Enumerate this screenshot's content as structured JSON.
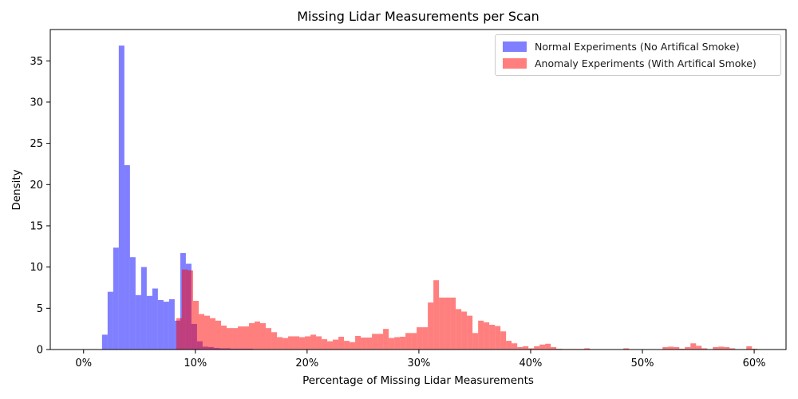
{
  "chart_data": {
    "type": "bar",
    "subtype": "overlapping-histogram",
    "title": "Missing Lidar Measurements per Scan",
    "xlabel": "Percentage of Missing Lidar Measurements",
    "ylabel": "Density",
    "x_tick_values": [
      0,
      10,
      20,
      30,
      40,
      50,
      60
    ],
    "x_tick_labels": [
      "0%",
      "10%",
      "20%",
      "30%",
      "40%",
      "50%",
      "60%"
    ],
    "y_tick_values": [
      0,
      5,
      10,
      15,
      20,
      25,
      30,
      35
    ],
    "y_tick_labels": [
      "0",
      "5",
      "10",
      "15",
      "20",
      "25",
      "30",
      "35"
    ],
    "xlim": [
      -2.98,
      62.85
    ],
    "ylim": [
      0,
      38.8
    ],
    "grid": false,
    "legend_position": "upper right",
    "bin_width_pct": 0.5,
    "series": [
      {
        "name": "Normal Experiments (No Artifical Smoke)",
        "color": "rgba(0,0,255,0.5)",
        "legend_color": "#7f7fff",
        "bin_start_pct": 1.65,
        "densities": [
          1.8,
          7.0,
          12.35,
          36.85,
          22.35,
          11.2,
          6.6,
          10.0,
          6.5,
          7.4,
          6.0,
          5.8,
          6.1,
          3.5,
          11.7,
          10.4,
          3.1,
          1.0,
          0.35,
          0.3,
          0.2,
          0.15,
          0.15,
          0.1,
          0.1,
          0.1,
          0.1
        ]
      },
      {
        "name": "Anomaly Experiments (With Artifical Smoke)",
        "color": "rgba(255,0,0,0.5)",
        "legend_color": "#ff7f7f",
        "bin_start_pct": 8.3,
        "densities": [
          3.8,
          9.7,
          9.6,
          5.9,
          4.3,
          4.1,
          3.8,
          3.5,
          2.9,
          2.6,
          2.6,
          2.8,
          2.8,
          3.2,
          3.4,
          3.2,
          2.6,
          2.1,
          1.5,
          1.4,
          1.6,
          1.6,
          1.5,
          1.6,
          1.8,
          1.6,
          1.25,
          1.0,
          1.2,
          1.55,
          1.05,
          0.9,
          1.65,
          1.45,
          1.45,
          1.9,
          1.9,
          2.5,
          1.4,
          1.5,
          1.55,
          2.0,
          2.0,
          2.7,
          2.7,
          5.7,
          8.4,
          6.3,
          6.3,
          6.3,
          4.9,
          4.6,
          4.1,
          2.0,
          3.5,
          3.3,
          3.0,
          2.85,
          2.2,
          1.05,
          0.75,
          0.3,
          0.4,
          0.15,
          0.4,
          0.6,
          0.7,
          0.3,
          0.1,
          0.07,
          0.07,
          0.07,
          0.07,
          0.15,
          0,
          0,
          0,
          0,
          0,
          0,
          0.15,
          0,
          0,
          0,
          0,
          0,
          0,
          0.3,
          0.35,
          0.3,
          0.1,
          0.3,
          0.75,
          0.45,
          0.15,
          0,
          0.3,
          0.35,
          0.3,
          0.15,
          0,
          0,
          0.4,
          0.1,
          0
        ]
      }
    ],
    "axis_color": "#000000",
    "background_color": "#ffffff"
  }
}
